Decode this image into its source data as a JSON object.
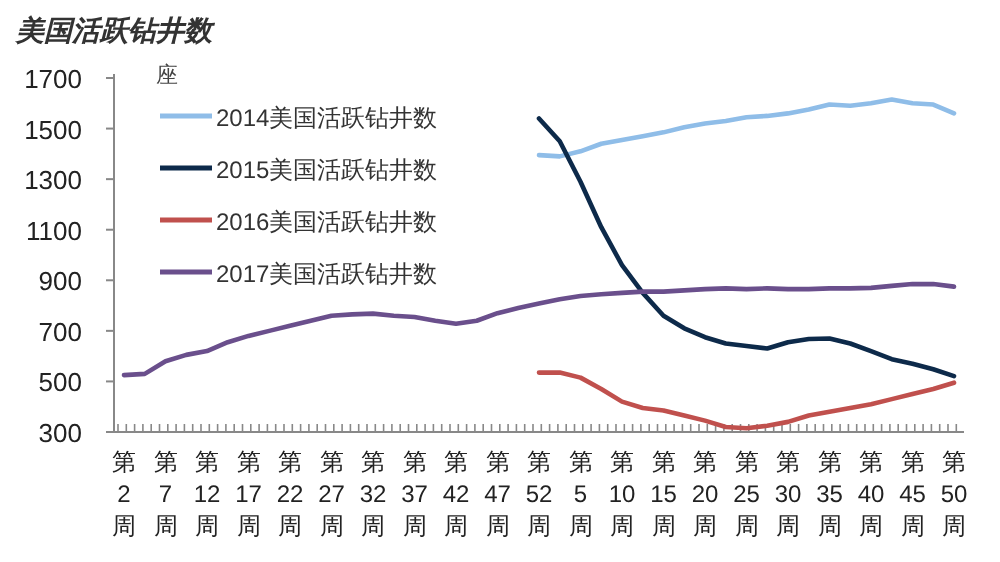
{
  "chart_data": {
    "type": "line",
    "title": "美国活跃钻井数",
    "ylabel": "座",
    "categories": [
      "第2周",
      null,
      "第7周",
      null,
      "第12周",
      null,
      "第17周",
      null,
      "第22周",
      null,
      "第27周",
      null,
      "第32周",
      null,
      "第37周",
      null,
      "第42周",
      null,
      "第47周",
      null,
      "第52周",
      null,
      "第5周",
      null,
      "第10周",
      null,
      "第15周",
      null,
      "第20周",
      null,
      "第25周",
      null,
      "第30周",
      null,
      "第35周",
      null,
      "第40周",
      null,
      "第45周",
      null,
      "第50周"
    ],
    "series": [
      {
        "name": "2014美国活跃钻井数",
        "color": "#8fbde8",
        "values": [
          null,
          null,
          null,
          null,
          null,
          null,
          null,
          null,
          null,
          null,
          null,
          null,
          null,
          null,
          null,
          null,
          null,
          null,
          null,
          null,
          1395,
          1390,
          1410,
          1440,
          1455,
          1470,
          1485,
          1505,
          1520,
          1530,
          1545,
          1550,
          1560,
          1575,
          1595,
          1590,
          1600,
          1615,
          1600,
          1595,
          1560
        ]
      },
      {
        "name": "2015美国活跃钻井数",
        "color": "#0d2a4a",
        "values": [
          null,
          null,
          null,
          null,
          null,
          null,
          null,
          null,
          null,
          null,
          null,
          null,
          null,
          null,
          null,
          null,
          null,
          null,
          null,
          null,
          1540,
          1450,
          1290,
          1110,
          960,
          850,
          760,
          710,
          675,
          650,
          640,
          630,
          655,
          668,
          670,
          650,
          620,
          588,
          570,
          548,
          521
        ]
      },
      {
        "name": "2016美国活跃钻井数",
        "color": "#c0504d",
        "values": [
          null,
          null,
          null,
          null,
          null,
          null,
          null,
          null,
          null,
          null,
          null,
          null,
          null,
          null,
          null,
          null,
          null,
          null,
          null,
          null,
          535,
          535,
          515,
          470,
          420,
          395,
          385,
          365,
          345,
          320,
          315,
          325,
          340,
          365,
          380,
          395,
          410,
          430,
          450,
          470,
          495
        ]
      },
      {
        "name": "2017美国活跃钻井数",
        "color": "#6a4f8c",
        "values": [
          525,
          530,
          580,
          605,
          620,
          655,
          680,
          700,
          720,
          740,
          760,
          765,
          768,
          760,
          755,
          740,
          728,
          740,
          770,
          790,
          808,
          825,
          838,
          845,
          850,
          855,
          855,
          860,
          865,
          868,
          865,
          868,
          865,
          865,
          868,
          868,
          870,
          878,
          885,
          885,
          875
        ]
      }
    ],
    "ylim": [
      300,
      1700
    ],
    "yticks": [
      300,
      500,
      700,
      900,
      1100,
      1300,
      1500,
      1700
    ],
    "grid": false,
    "legend": "top left",
    "marker": "none",
    "line_style": "solid"
  }
}
